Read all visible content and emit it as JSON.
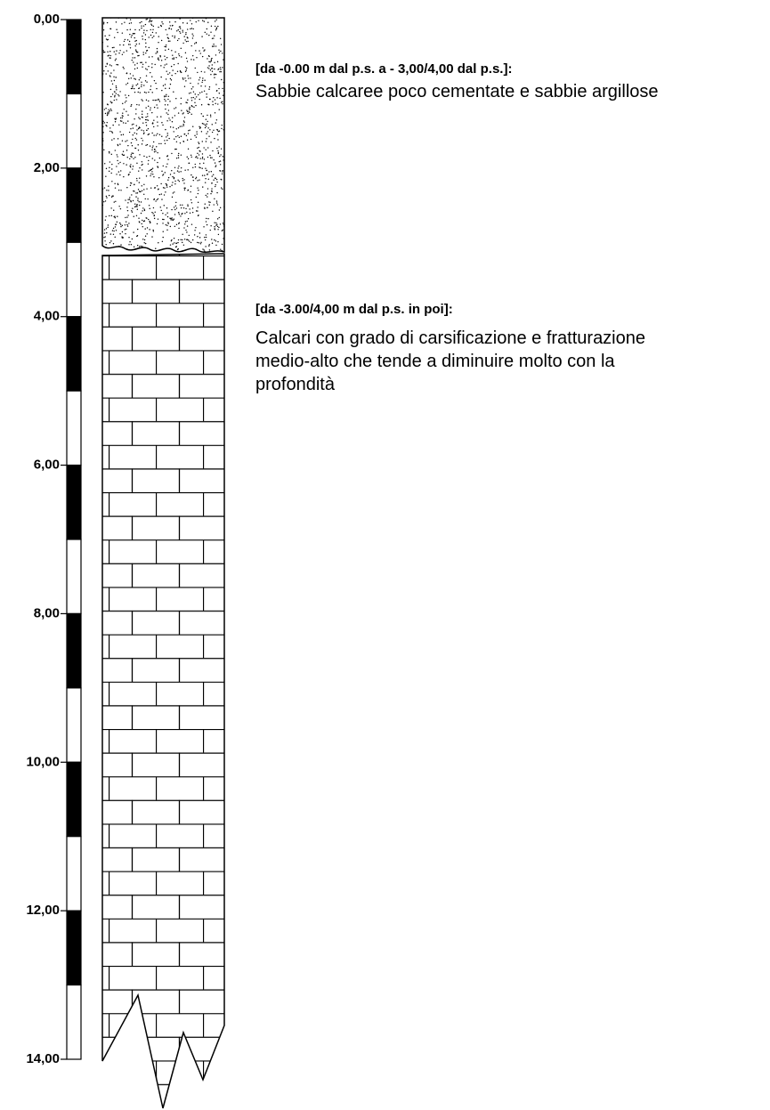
{
  "scale": {
    "labels": [
      "0,00",
      "2,00",
      "4,00",
      "6,00",
      "8,00",
      "10,00",
      "12,00",
      "14,00"
    ]
  },
  "layers": [
    {
      "heading": "[da -0.00 m dal p.s. a - 3,00/4,00 dal p.s.]:",
      "lines": [
        "Sabbie calcaree poco cementate e sabbie argillose"
      ]
    },
    {
      "heading": "[da -3.00/4,00 m dal p.s. in poi]:",
      "lines": [
        "Calcari con grado di carsificazione e fratturazione",
        "medio-alto che tende a diminuire molto con la",
        "profondità"
      ]
    }
  ]
}
